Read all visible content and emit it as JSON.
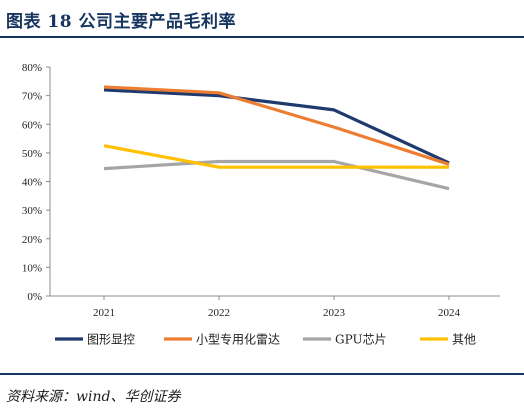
{
  "header": {
    "title": "图表 18   公司主要产品毛利率"
  },
  "footer": {
    "source": "资料来源：wind、华创证券"
  },
  "chart_data": {
    "type": "line",
    "title": "",
    "xlabel": "",
    "ylabel": "",
    "categories": [
      "2021",
      "2022",
      "2023",
      "2024"
    ],
    "ylim": [
      0,
      80
    ],
    "yticks": [
      "0%",
      "10%",
      "20%",
      "30%",
      "40%",
      "50%",
      "60%",
      "70%",
      "80%"
    ],
    "ytick_values": [
      0,
      10,
      20,
      30,
      40,
      50,
      60,
      70,
      80
    ],
    "grid": false,
    "legend_position": "bottom",
    "series": [
      {
        "name": "图形显控",
        "color": "#1f3a6e",
        "values": [
          72.0,
          70.0,
          65.0,
          46.5
        ]
      },
      {
        "name": "小型专用化雷达",
        "color": "#ed7d31",
        "values": [
          73.0,
          71.0,
          59.0,
          46.0
        ]
      },
      {
        "name": "GPU芯片",
        "color": "#a5a5a5",
        "values": [
          44.5,
          47.0,
          47.0,
          37.5
        ]
      },
      {
        "name": "其他",
        "color": "#ffc000",
        "values": [
          52.5,
          45.0,
          45.0,
          45.0
        ]
      }
    ]
  }
}
